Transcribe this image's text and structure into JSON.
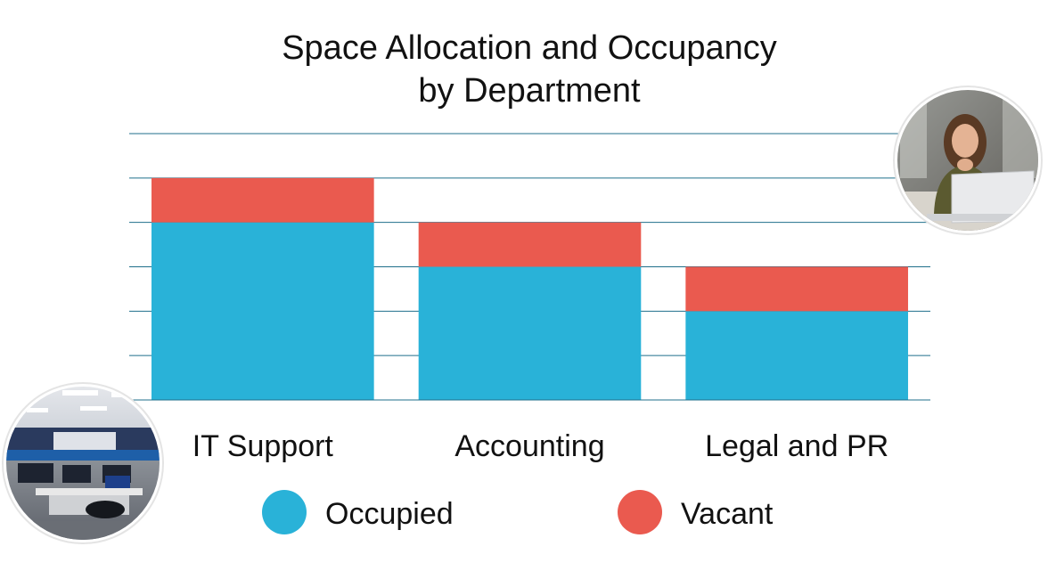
{
  "chart_data": {
    "type": "bar",
    "stacked": true,
    "title_lines": [
      "Space Allocation and Occupancy",
      "by Department"
    ],
    "categories": [
      "IT Support",
      "Accounting",
      "Legal and PR"
    ],
    "series": [
      {
        "name": "Occupied",
        "color": "#29b2d8",
        "values": [
          4,
          3,
          2
        ]
      },
      {
        "name": "Vacant",
        "color": "#ea5a4f",
        "values": [
          1,
          1,
          1
        ]
      }
    ],
    "ylim": [
      0,
      6
    ],
    "grid": true,
    "grid_color": "#1f6f8b",
    "axis_labels_visible": false,
    "legend_position": "bottom"
  },
  "images": [
    {
      "name": "office-workspace-photo",
      "description_icon": "office-room-icon"
    },
    {
      "name": "woman-laptop-photo",
      "description_icon": "person-laptop-icon"
    }
  ]
}
